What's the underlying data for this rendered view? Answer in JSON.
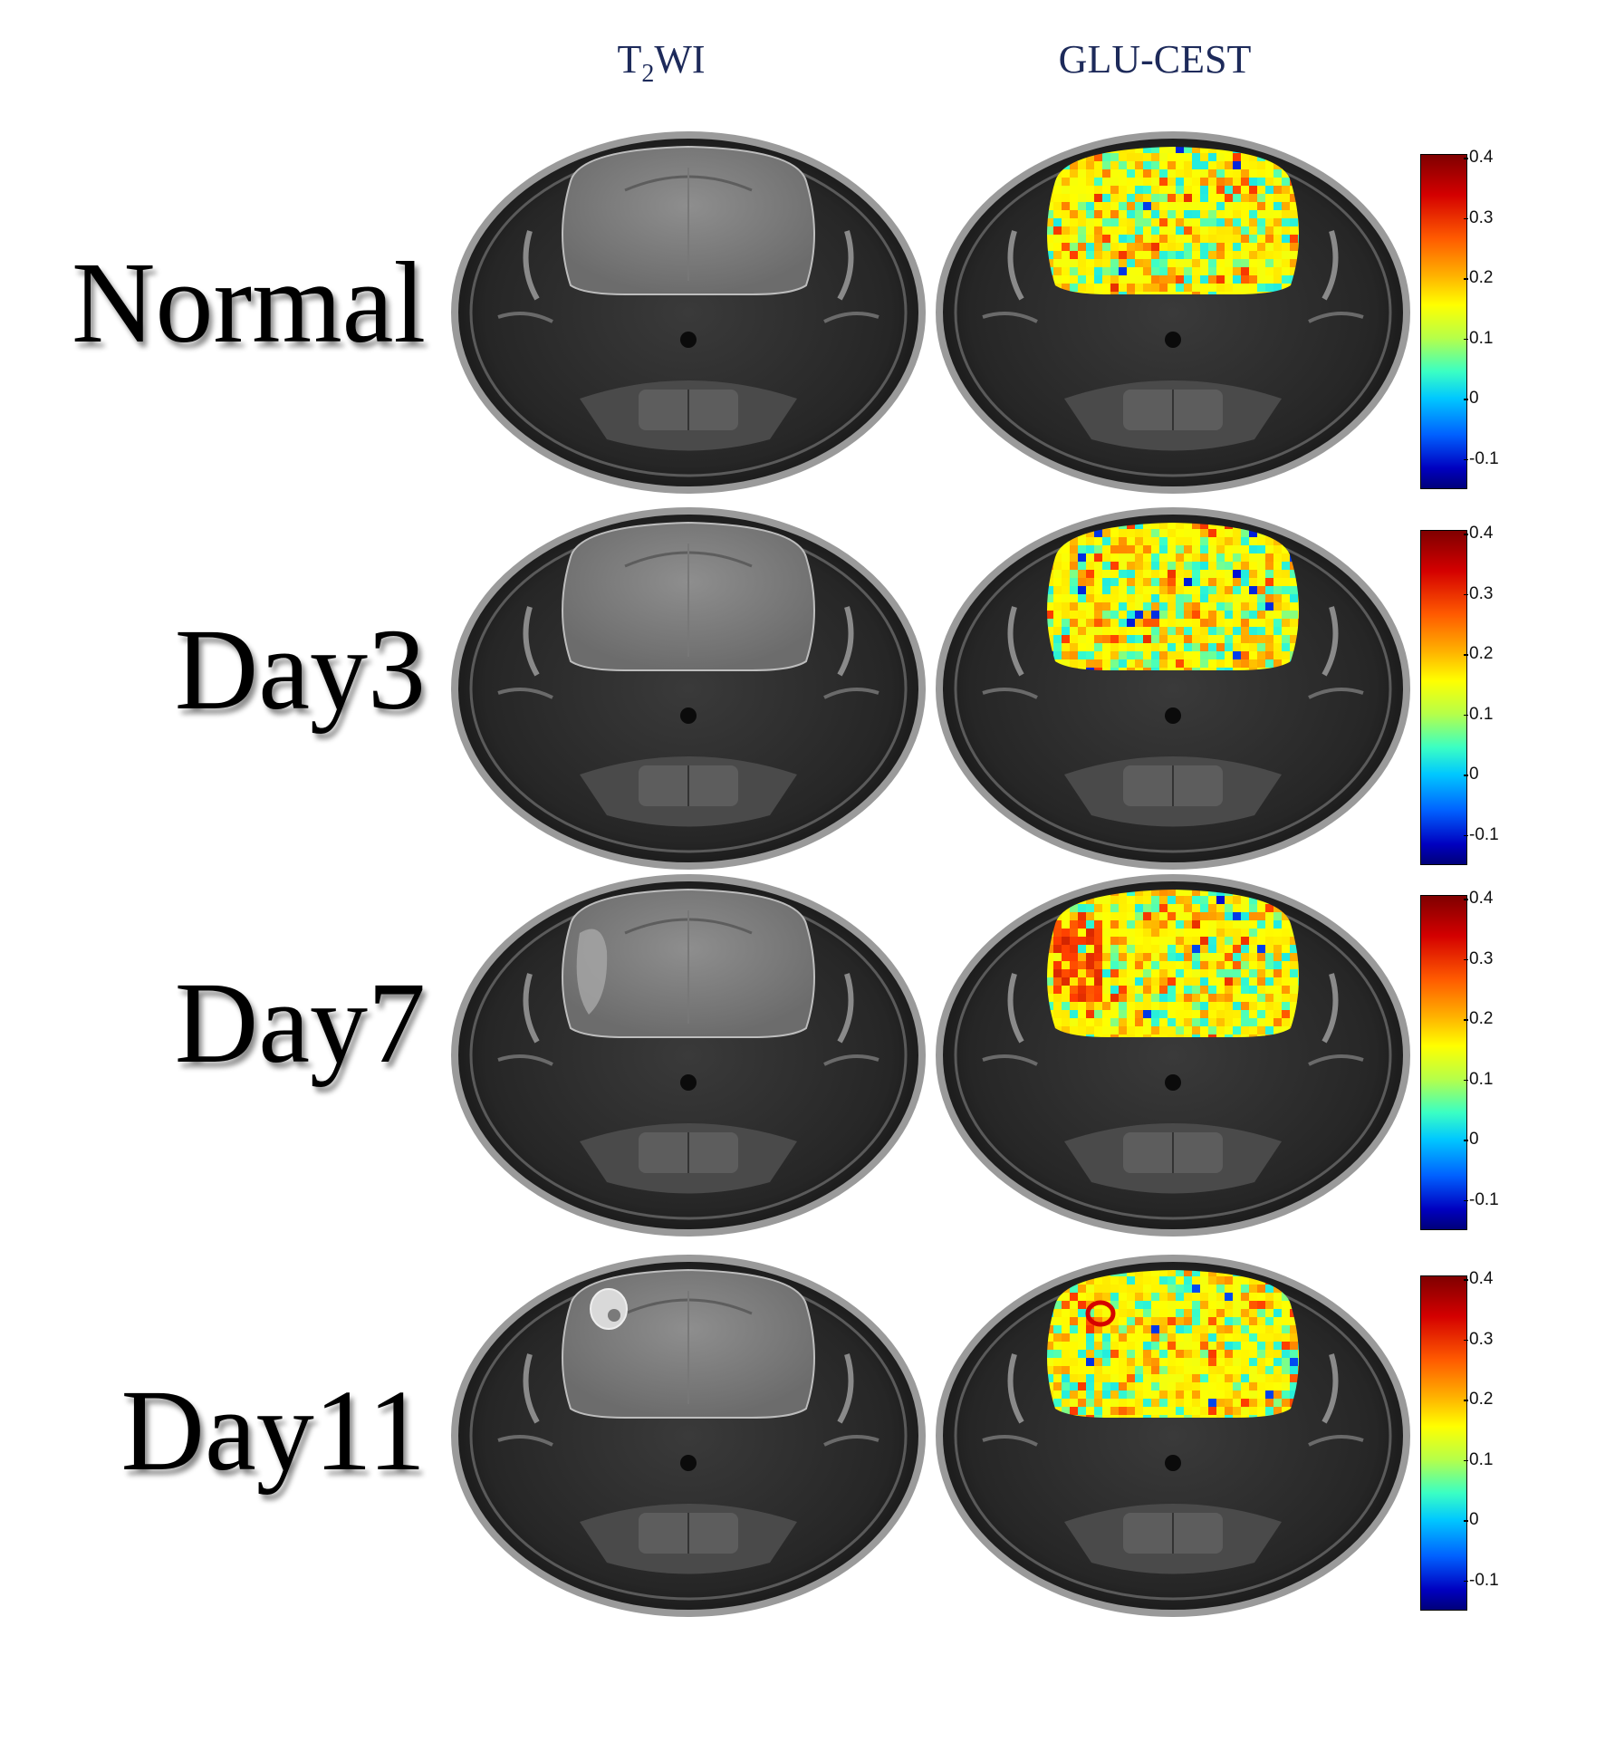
{
  "columns": {
    "t2wi": {
      "main": "T",
      "sub": "2",
      "rest": "WI"
    },
    "cest": "GLU-CEST"
  },
  "rows": [
    {
      "label": "Normal",
      "lesion": 0
    },
    {
      "label": "Day3",
      "lesion": 0
    },
    {
      "label": "Day7",
      "lesion": 1
    },
    {
      "label": "Day11",
      "lesion": 2
    }
  ],
  "colorbar": {
    "ticks": [
      "0.4",
      "0.3",
      "0.2",
      "0.1",
      "0",
      "-0.1"
    ],
    "range": [
      -0.15,
      0.4
    ]
  }
}
